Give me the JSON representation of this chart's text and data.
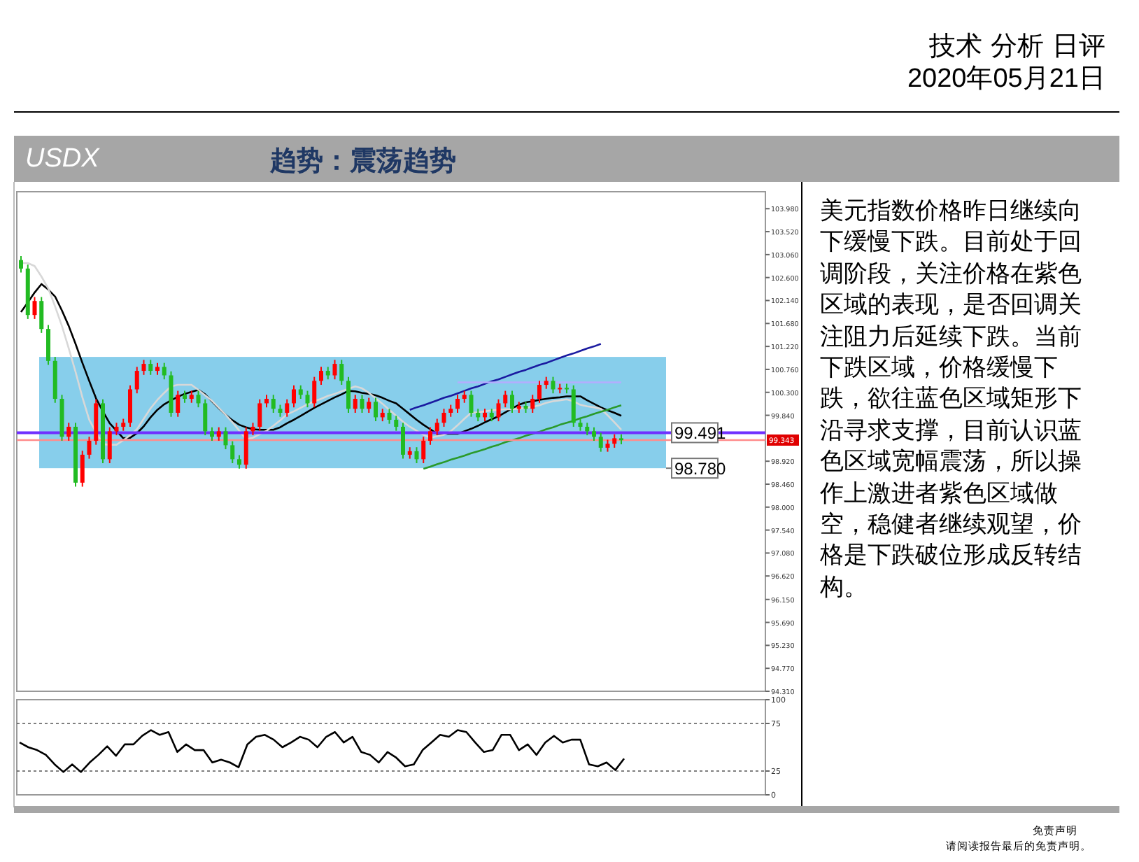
{
  "chart_data": [
    {
      "type": "candlestick",
      "title": "USDX",
      "subtitle": "趋势：震荡趋势",
      "annotations": [
        "技术 分析 日评",
        "2020年05月21日",
        "美元指数价格昨日继续向下缓慢下跌。目前处于回调阶段，关注价格在紫色区域的表现，是否回调关注阻力后延续下跌。当前下跌区域，价格缓慢下跌，欲往蓝色区域矩形下沿寻求支撑，目前认识蓝色区域宽幅震荡，所以操作上激进者紫色区域做空，稳健者继续观望，价格是下跌破位形成反转结构。",
        "免责声明",
        "请阅读报告最后的免责声明。"
      ],
      "categories": [
        null,
        null,
        null,
        null,
        null,
        null,
        null,
        null,
        null,
        null,
        null,
        null,
        null,
        null,
        null,
        null,
        null,
        null,
        null,
        null,
        null,
        null,
        null,
        null,
        null,
        null,
        null,
        null,
        null,
        null,
        null,
        null,
        null,
        null,
        null,
        null,
        null,
        null,
        null,
        null,
        null,
        null,
        null,
        null,
        null,
        null,
        null,
        null,
        null,
        null,
        null,
        null,
        null,
        null,
        null,
        null,
        null,
        null,
        null,
        null,
        null,
        null,
        null,
        null,
        null,
        null,
        null,
        null,
        null,
        null,
        null,
        null,
        null,
        null,
        null,
        null,
        null,
        null,
        null,
        null,
        null,
        null,
        null,
        null,
        null,
        null,
        null,
        null,
        null
      ],
      "colors": [
        "#22bb22",
        "#22bb22",
        "#ff0000",
        "#22bb22",
        "#22bb22",
        "#22bb22",
        "#22bb22",
        "#ff0000",
        "#22bb22",
        "#ff0000",
        "#ff0000",
        "#ff0000",
        "#22bb22",
        "#ff0000",
        "#ff0000",
        "#ff0000",
        "#ff0000",
        "#ff0000",
        "#ff0000",
        "#22bb22",
        "#ff0000",
        "#22bb22",
        "#22bb22",
        "#ff0000",
        "#22bb22",
        "#ff0000",
        "#22bb22",
        "#22bb22",
        "#22bb22",
        "#ff0000",
        "#22bb22",
        "#22bb22",
        "#22bb22",
        "#ff0000",
        "#ff0000",
        "#ff0000",
        "#ff0000",
        "#22bb22",
        "#22bb22",
        "#ff0000",
        "#ff0000",
        "#22bb22",
        "#22bb22",
        "#ff0000",
        "#ff0000",
        "#22bb22",
        "#ff0000",
        "#22bb22",
        "#22bb22",
        "#ff0000",
        "#22bb22",
        "#ff0000",
        "#22bb22",
        "#ff0000",
        "#22bb22",
        "#22bb22",
        "#22bb22",
        "#ff0000",
        "#22bb22",
        "#ff0000",
        "#ff0000",
        "#ff0000",
        "#ff0000",
        "#ff0000",
        "#ff0000",
        "#ff0000",
        "#22bb22",
        "#22bb22",
        "#ff0000",
        "#22bb22",
        "#ff0000",
        "#ff0000",
        "#22bb22",
        "#ff0000",
        "#22bb22",
        "#ff0000",
        "#ff0000",
        "#ff0000",
        "#22bb22",
        "#ff0000",
        "#22bb22",
        "#22bb22",
        "#22bb22",
        "#22bb22",
        "#22bb22",
        "#22bb22",
        "#ff0000",
        "#ff0000",
        "#22bb22"
      ],
      "ohlc": [
        [
          102.95,
          103.03,
          102.7,
          102.78
        ],
        [
          102.78,
          102.86,
          101.77,
          101.85
        ],
        [
          101.85,
          102.21,
          101.77,
          102.13
        ],
        [
          102.13,
          102.21,
          101.49,
          101.57
        ],
        [
          101.57,
          101.65,
          100.85,
          100.93
        ],
        [
          100.93,
          101.01,
          100.09,
          100.17
        ],
        [
          100.17,
          100.25,
          99.33,
          99.41
        ],
        [
          99.41,
          99.69,
          99.33,
          99.61
        ],
        [
          99.61,
          99.69,
          98.41,
          98.49
        ],
        [
          98.49,
          99.13,
          98.41,
          99.05
        ],
        [
          99.05,
          99.41,
          98.97,
          99.33
        ],
        [
          99.33,
          100.16,
          99.25,
          100.08
        ],
        [
          100.08,
          100.16,
          98.88,
          98.96
        ],
        [
          98.96,
          99.6,
          98.88,
          99.52
        ],
        [
          99.52,
          99.69,
          99.44,
          99.61
        ],
        [
          99.61,
          99.77,
          99.53,
          99.69
        ],
        [
          99.69,
          100.44,
          99.61,
          100.36
        ],
        [
          100.36,
          100.81,
          100.28,
          100.73
        ],
        [
          100.73,
          100.95,
          100.65,
          100.87
        ],
        [
          100.87,
          100.95,
          100.65,
          100.73
        ],
        [
          100.73,
          100.89,
          100.65,
          100.81
        ],
        [
          100.81,
          100.89,
          100.56,
          100.64
        ],
        [
          100.64,
          100.72,
          99.81,
          99.89
        ],
        [
          99.89,
          100.33,
          99.81,
          100.25
        ],
        [
          100.25,
          100.33,
          100.09,
          100.17
        ],
        [
          100.17,
          100.33,
          100.09,
          100.25
        ],
        [
          100.25,
          100.33,
          100.0,
          100.08
        ],
        [
          100.08,
          100.16,
          99.44,
          99.52
        ],
        [
          99.52,
          99.6,
          99.33,
          99.41
        ],
        [
          99.41,
          99.6,
          99.33,
          99.52
        ],
        [
          99.52,
          99.6,
          99.16,
          99.24
        ],
        [
          99.24,
          99.32,
          98.88,
          98.96
        ],
        [
          98.96,
          99.04,
          98.77,
          98.85
        ],
        [
          98.85,
          99.6,
          98.77,
          99.52
        ],
        [
          99.52,
          99.69,
          99.44,
          99.61
        ],
        [
          99.61,
          100.16,
          99.53,
          100.08
        ],
        [
          100.08,
          100.25,
          100.0,
          100.17
        ],
        [
          100.17,
          100.25,
          99.89,
          99.97
        ],
        [
          99.97,
          100.05,
          99.81,
          99.89
        ],
        [
          99.89,
          100.16,
          99.81,
          100.08
        ],
        [
          100.08,
          100.44,
          100.0,
          100.36
        ],
        [
          100.36,
          100.44,
          100.17,
          100.25
        ],
        [
          100.25,
          100.33,
          100.0,
          100.08
        ],
        [
          100.08,
          100.61,
          100.0,
          100.53
        ],
        [
          100.53,
          100.81,
          100.45,
          100.73
        ],
        [
          100.73,
          100.81,
          100.56,
          100.64
        ],
        [
          100.64,
          100.95,
          100.56,
          100.87
        ],
        [
          100.87,
          100.95,
          100.45,
          100.53
        ],
        [
          100.53,
          100.61,
          99.89,
          99.97
        ],
        [
          99.97,
          100.25,
          99.89,
          100.17
        ],
        [
          100.17,
          100.25,
          99.89,
          99.97
        ],
        [
          99.97,
          100.19,
          99.89,
          100.11
        ],
        [
          100.11,
          100.19,
          99.72,
          99.8
        ],
        [
          99.8,
          99.97,
          99.72,
          99.89
        ],
        [
          99.89,
          99.97,
          99.67,
          99.75
        ],
        [
          99.75,
          99.83,
          99.53,
          99.61
        ],
        [
          99.61,
          99.69,
          98.97,
          99.05
        ],
        [
          99.05,
          99.2,
          98.97,
          99.12
        ],
        [
          99.12,
          99.2,
          98.88,
          98.96
        ],
        [
          98.96,
          99.41,
          98.88,
          99.33
        ],
        [
          99.33,
          99.6,
          99.25,
          99.52
        ],
        [
          99.52,
          99.77,
          99.44,
          99.69
        ],
        [
          99.69,
          99.97,
          99.61,
          99.89
        ],
        [
          99.89,
          100.05,
          99.81,
          99.97
        ],
        [
          99.97,
          100.25,
          99.89,
          100.17
        ],
        [
          100.17,
          100.33,
          100.09,
          100.25
        ],
        [
          100.25,
          100.33,
          99.81,
          99.89
        ],
        [
          99.89,
          99.97,
          99.72,
          99.8
        ],
        [
          99.8,
          99.97,
          99.72,
          99.89
        ],
        [
          99.89,
          99.97,
          99.72,
          99.8
        ],
        [
          99.8,
          100.16,
          99.72,
          100.08
        ],
        [
          100.08,
          100.33,
          100.0,
          100.25
        ],
        [
          100.25,
          100.33,
          99.89,
          99.97
        ],
        [
          99.97,
          100.11,
          99.89,
          100.03
        ],
        [
          100.03,
          100.11,
          99.89,
          99.97
        ],
        [
          99.97,
          100.25,
          99.89,
          100.17
        ],
        [
          100.17,
          100.53,
          100.09,
          100.45
        ],
        [
          100.45,
          100.61,
          100.37,
          100.53
        ],
        [
          100.53,
          100.61,
          100.28,
          100.36
        ],
        [
          100.36,
          100.47,
          100.28,
          100.39
        ],
        [
          100.39,
          100.47,
          100.28,
          100.36
        ],
        [
          100.36,
          100.44,
          99.61,
          99.69
        ],
        [
          99.69,
          99.77,
          99.53,
          99.61
        ],
        [
          99.61,
          99.69,
          99.44,
          99.52
        ],
        [
          99.52,
          99.6,
          99.33,
          99.41
        ],
        [
          99.41,
          99.49,
          99.11,
          99.19
        ],
        [
          99.19,
          99.35,
          99.11,
          99.27
        ],
        [
          99.27,
          99.46,
          99.19,
          99.38
        ],
        [
          99.38,
          99.46,
          99.26,
          99.34
        ]
      ],
      "series": [
        {
          "type": "line",
          "color": "#000000",
          "values": [
            101.91,
            102.1,
            102.3,
            102.47,
            102.36,
            102.22,
            101.94,
            101.63,
            101.27,
            100.89,
            100.53,
            100.18,
            99.92,
            99.68,
            99.53,
            99.38,
            99.39,
            99.48,
            99.62,
            99.8,
            99.95,
            100.06,
            100.14,
            100.21,
            100.27,
            100.31,
            100.35,
            100.26,
            100.12,
            99.98,
            99.85,
            99.74,
            99.65,
            99.6,
            99.56,
            99.55,
            99.55,
            99.55,
            99.6,
            99.68,
            99.75,
            99.83,
            99.91,
            99.99,
            100.06,
            100.13,
            100.2,
            100.26,
            100.33,
            100.32,
            100.29,
            100.27,
            100.24,
            100.19,
            100.13,
            100.08,
            99.97,
            99.86,
            99.75,
            99.65,
            99.56,
            99.47,
            99.47,
            99.47,
            99.47,
            99.52,
            99.57,
            99.63,
            99.7,
            99.76,
            99.82,
            99.9,
            99.98,
            100.05,
            100.1,
            100.12,
            100.15,
            100.17,
            100.19,
            100.2,
            100.22,
            100.22,
            100.22,
            100.14,
            100.07,
            100.0,
            99.94,
            99.89,
            99.83
          ]
        },
        {
          "type": "line",
          "color": "#d8d8d8",
          "values": [
            102.89,
            102.89,
            102.83,
            102.62,
            102.38,
            102.02,
            101.63,
            101.18,
            100.71,
            100.2,
            99.75,
            99.5,
            99.26,
            99.25,
            99.25,
            99.34,
            99.44,
            99.56,
            99.77,
            99.98,
            100.15,
            100.29,
            100.42,
            100.45,
            100.45,
            100.45,
            100.35,
            100.24,
            100.13,
            99.99,
            99.85,
            99.7,
            99.53,
            99.36,
            99.39,
            99.46,
            99.53,
            99.63,
            99.74,
            99.86,
            99.92,
            99.99,
            100.06,
            100.12,
            100.17,
            100.23,
            100.27,
            100.32,
            100.37,
            100.42,
            100.38,
            100.29,
            100.18,
            100.07,
            99.95,
            99.83,
            99.71,
            99.61,
            99.53,
            99.45,
            99.39,
            99.42,
            99.45,
            99.52,
            99.64,
            99.77,
            99.89,
            99.9,
            99.92,
            99.94,
            99.95,
            99.96,
            99.96,
            99.97,
            99.99,
            100.01,
            100.04,
            100.09,
            100.12,
            100.14,
            100.16,
            100.12,
            100.05,
            100.02,
            100.0,
            99.97,
            99.84,
            99.7,
            99.55
          ]
        },
        {
          "type": "line",
          "color": "#1a1aa0",
          "values": [
            null,
            null,
            null,
            null,
            null,
            null,
            null,
            null,
            null,
            null,
            null,
            null,
            null,
            null,
            null,
            null,
            null,
            null,
            null,
            null,
            null,
            null,
            null,
            null,
            null,
            null,
            null,
            null,
            null,
            null,
            null,
            null,
            null,
            null,
            null,
            null,
            null,
            null,
            null,
            null,
            null,
            null,
            null,
            null,
            null,
            null,
            null,
            null,
            null,
            null,
            null,
            null,
            null,
            null,
            null,
            null,
            null,
            99.95,
            100.0,
            100.04,
            100.09,
            100.14,
            100.19,
            100.23,
            100.28,
            100.33,
            100.38,
            100.42,
            100.47,
            100.52,
            100.56,
            100.61,
            100.66,
            100.71,
            100.75,
            100.8,
            100.85,
            100.89,
            100.94,
            100.99,
            101.04,
            101.08,
            101.13,
            101.18,
            101.22,
            101.27,
            null,
            null,
            null
          ]
        },
        {
          "type": "line",
          "color": "#2a9a2a",
          "values": [
            null,
            null,
            null,
            null,
            null,
            null,
            null,
            null,
            null,
            null,
            null,
            null,
            null,
            null,
            null,
            null,
            null,
            null,
            null,
            null,
            null,
            null,
            null,
            null,
            null,
            null,
            null,
            null,
            null,
            null,
            null,
            null,
            null,
            null,
            null,
            null,
            null,
            null,
            null,
            null,
            null,
            null,
            null,
            null,
            null,
            null,
            null,
            null,
            null,
            null,
            null,
            null,
            null,
            null,
            null,
            null,
            null,
            null,
            null,
            98.77,
            98.81,
            98.86,
            98.9,
            98.95,
            98.99,
            99.03,
            99.08,
            99.12,
            99.16,
            99.21,
            99.25,
            99.3,
            99.34,
            99.38,
            99.43,
            99.47,
            99.51,
            99.56,
            99.6,
            99.65,
            99.69,
            99.73,
            99.78,
            99.82,
            99.87,
            99.91,
            99.95,
            100.0,
            100.04
          ]
        },
        {
          "type": "line",
          "color": "#b4acff",
          "values": [
            null,
            null,
            null,
            null,
            null,
            null,
            null,
            null,
            null,
            null,
            null,
            null,
            null,
            null,
            null,
            null,
            null,
            null,
            null,
            null,
            null,
            null,
            null,
            null,
            null,
            null,
            null,
            null,
            null,
            null,
            null,
            null,
            null,
            null,
            null,
            null,
            null,
            null,
            null,
            null,
            null,
            null,
            null,
            null,
            null,
            null,
            null,
            null,
            null,
            null,
            null,
            null,
            null,
            null,
            null,
            null,
            null,
            null,
            null,
            null,
            null,
            null,
            null,
            null,
            100.5,
            100.5,
            100.5,
            100.5,
            100.5,
            100.5,
            100.5,
            100.5,
            100.5,
            100.5,
            100.5,
            100.5,
            100.5,
            100.5,
            100.5,
            100.5,
            100.5,
            100.5,
            100.5,
            100.5,
            100.5,
            100.5,
            100.5,
            100.5,
            100.5
          ]
        }
      ],
      "bands": [
        {
          "axis": "y",
          "from": 98.78,
          "to": 101.01,
          "label": "98.780",
          "color": "#87ceeb"
        }
      ],
      "ref_lines": [
        {
          "axis": "y",
          "value": 99.491,
          "label": "99.491",
          "color": "#7030ff"
        },
        {
          "axis": "y",
          "value": 99.343,
          "label": "99.343",
          "color": "#ff8c8c"
        }
      ],
      "ylim": [
        94.31,
        104.32
      ],
      "yticks": [
        {
          "value": 103.98,
          "label": "103.980"
        },
        {
          "value": 103.52,
          "label": "103.520"
        },
        {
          "value": 103.06,
          "label": "103.060"
        },
        {
          "value": 102.6,
          "label": "102.600"
        },
        {
          "value": 102.14,
          "label": "102.140"
        },
        {
          "value": 101.68,
          "label": "101.680"
        },
        {
          "value": 101.22,
          "label": "101.220"
        },
        {
          "value": 100.76,
          "label": "100.760"
        },
        {
          "value": 100.3,
          "label": "100.300"
        },
        {
          "value": 99.84,
          "label": "99.840"
        },
        {
          "value": 98.92,
          "label": "98.920"
        },
        {
          "value": 98.46,
          "label": "98.460"
        },
        {
          "value": 98.0,
          "label": "98.000"
        },
        {
          "value": 97.54,
          "label": "97.540"
        },
        {
          "value": 97.08,
          "label": "97.080"
        },
        {
          "value": 96.62,
          "label": "96.620"
        },
        {
          "value": 96.15,
          "label": "96.150"
        },
        {
          "value": 95.69,
          "label": "95.690"
        },
        {
          "value": 95.23,
          "label": "95.230"
        },
        {
          "value": 94.77,
          "label": "94.770"
        },
        {
          "value": 94.31,
          "label": "94.310"
        }
      ],
      "tick_labels": "y"
    },
    {
      "type": "line",
      "categories": [
        null,
        null,
        null,
        null,
        null,
        null,
        null,
        null,
        null,
        null,
        null,
        null,
        null,
        null,
        null,
        null,
        null,
        null,
        null,
        null,
        null,
        null,
        null,
        null,
        null,
        null,
        null,
        null,
        null,
        null,
        null,
        null,
        null,
        null,
        null,
        null,
        null,
        null,
        null,
        null,
        null,
        null,
        null,
        null,
        null,
        null,
        null,
        null,
        null,
        null,
        null,
        null,
        null,
        null,
        null,
        null,
        null,
        null,
        null,
        null,
        null,
        null,
        null,
        null,
        null,
        null,
        null,
        null,
        null,
        null
      ],
      "series": [
        {
          "color": "#000000",
          "values": [
            55,
            50,
            47,
            42,
            32,
            24,
            32,
            24,
            34,
            42,
            51,
            41,
            53,
            53,
            62,
            68,
            63,
            66,
            45,
            53,
            47,
            47,
            34,
            37,
            34,
            29,
            53,
            61,
            63,
            58,
            50,
            55,
            61,
            58,
            50,
            61,
            66,
            55,
            61,
            45,
            42,
            34,
            45,
            39,
            30,
            32,
            47,
            55,
            63,
            61,
            68,
            66,
            55,
            45,
            47,
            63,
            63,
            47,
            53,
            42,
            55,
            62,
            55,
            58,
            58,
            32,
            30,
            34,
            26,
            38
          ]
        }
      ],
      "ylim": [
        0,
        100
      ],
      "yticks": [
        0,
        25,
        75,
        100
      ],
      "grid": "y",
      "tick_labels": "y"
    }
  ]
}
